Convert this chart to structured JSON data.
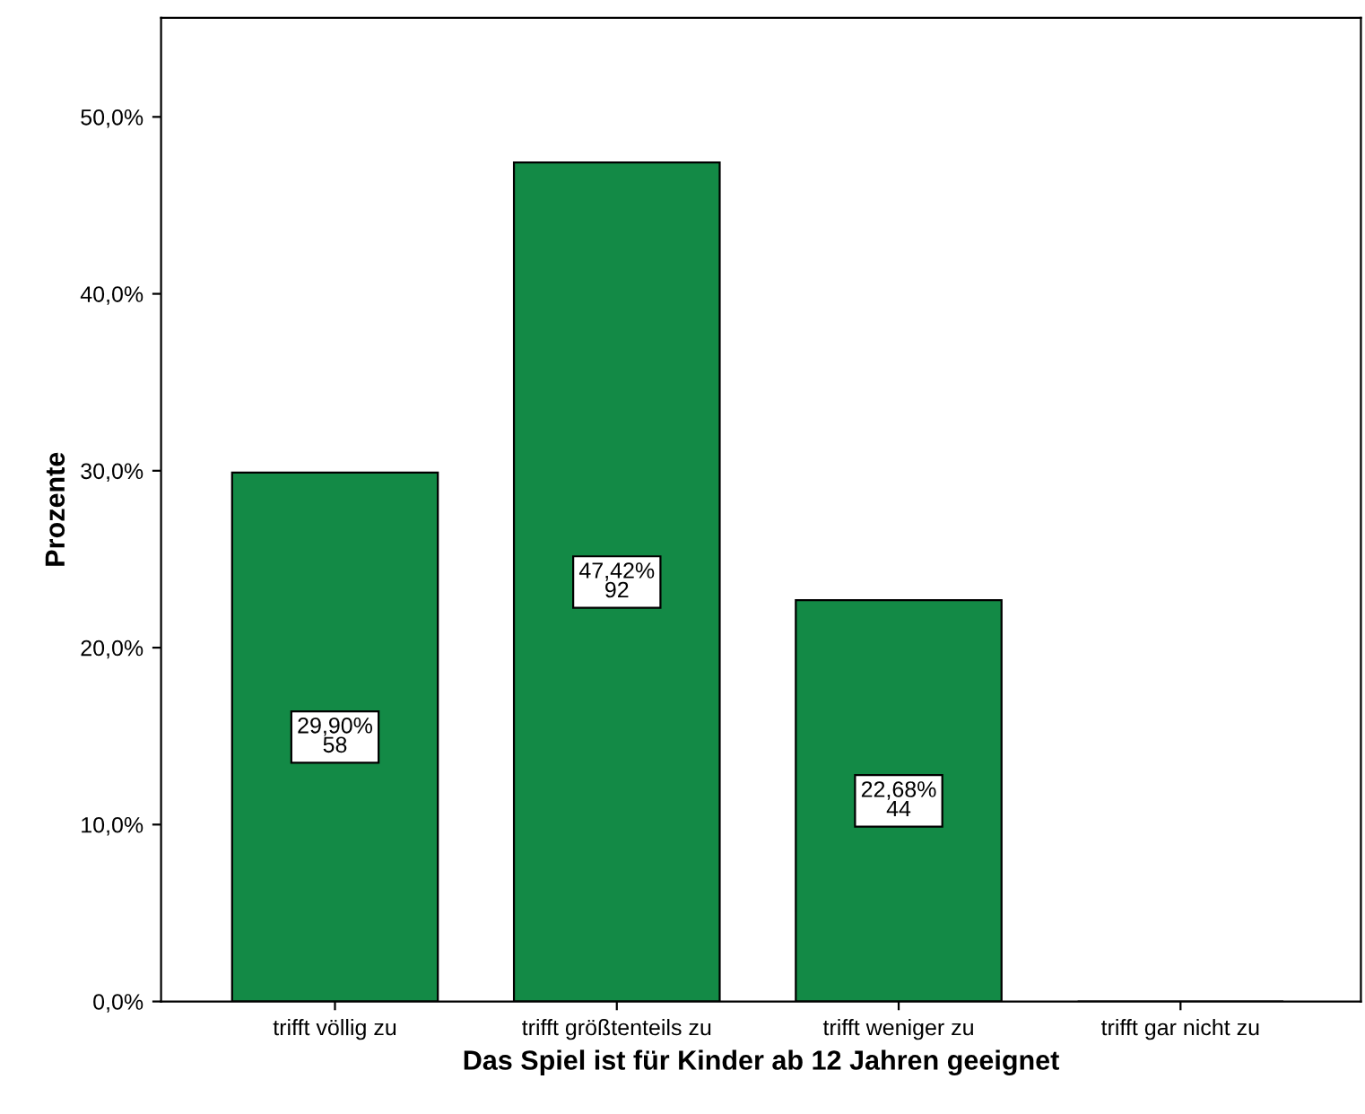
{
  "chart_data": {
    "type": "bar",
    "xlabel": "Das Spiel ist für Kinder ab 12 Jahren geeignet",
    "ylabel": "Prozente",
    "categories": [
      "trifft völlig zu",
      "trifft größtenteils zu",
      "trifft weniger zu",
      "trifft gar nicht zu"
    ],
    "values": [
      29.9,
      47.42,
      22.68,
      0
    ],
    "value_labels": [
      "29,90%\n58",
      "47,42%\n92",
      "22,68%\n44",
      null
    ],
    "color": "#138a46",
    "ylim": [
      0,
      55.6
    ],
    "yticks": [
      {
        "value": 0,
        "label": "0,0%"
      },
      {
        "value": 10,
        "label": "10,0%"
      },
      {
        "value": 20,
        "label": "20,0%"
      },
      {
        "value": 30,
        "label": "30,0%"
      },
      {
        "value": 40,
        "label": "40,0%"
      },
      {
        "value": 50,
        "label": "50,0%"
      }
    ],
    "grid": false
  }
}
